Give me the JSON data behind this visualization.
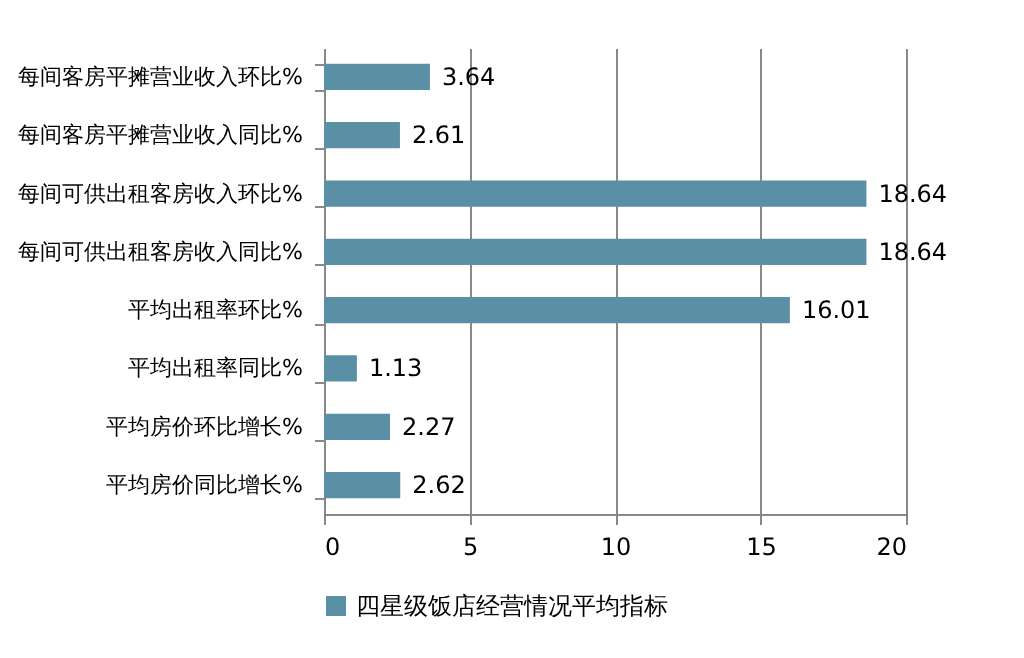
{
  "chart_data": {
    "type": "bar",
    "orientation": "horizontal",
    "categories": [
      "每间客房平摊营业收入环比%",
      "每间客房平摊营业收入同比%",
      "每间可供出租客房收入环比%",
      "每间可供出租客房收入同比%",
      "平均出租率环比%",
      "平均出租率同比%",
      "平均房价环比增长%",
      "平均房价同比增长%"
    ],
    "series": [
      {
        "name": "四星级饭店经营情况平均指标",
        "color": "#5b8fa6",
        "values": [
          3.64,
          2.61,
          18.64,
          18.64,
          16.01,
          1.13,
          2.27,
          2.62
        ]
      }
    ],
    "xlim": [
      0,
      20
    ],
    "xticks": [
      0,
      5,
      10,
      15,
      20
    ],
    "grid": "x",
    "legend": "bottom",
    "data_labels": true
  }
}
